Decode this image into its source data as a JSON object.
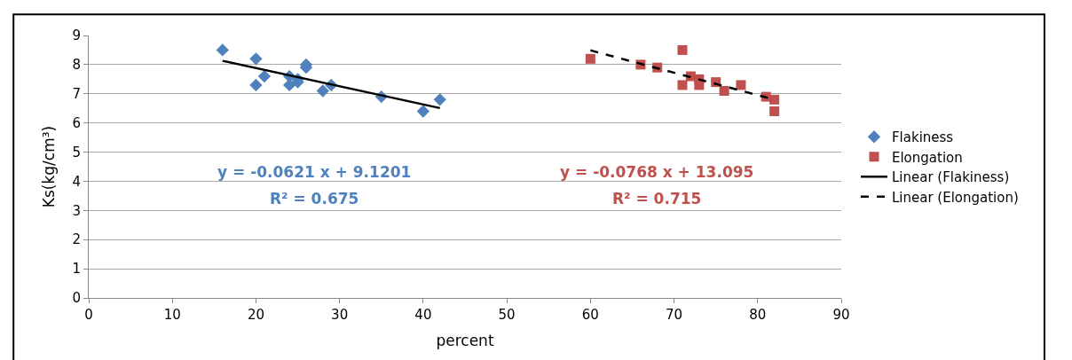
{
  "chart_data": {
    "type": "scatter",
    "xlabel": "percent",
    "ylabel": "Ks(kg/cm³)",
    "xlim": [
      0,
      90
    ],
    "xticks": [
      0,
      10,
      20,
      30,
      40,
      50,
      60,
      70,
      80,
      90
    ],
    "ylim": [
      0,
      9
    ],
    "yticks": [
      0,
      1,
      2,
      3,
      4,
      5,
      6,
      7,
      8,
      9
    ],
    "grid": "y",
    "legend": "right",
    "series": [
      {
        "name": "Flakiness",
        "color": "#4f81bd",
        "marker": "diamond",
        "x": [
          16,
          20,
          20,
          21,
          24,
          24,
          25,
          25,
          26,
          26,
          28,
          29,
          35,
          40,
          42
        ],
        "values": [
          8.5,
          8.2,
          7.3,
          7.6,
          7.6,
          7.3,
          7.4,
          7.5,
          7.9,
          8.0,
          7.1,
          7.3,
          6.9,
          6.4,
          6.8
        ]
      },
      {
        "name": "Elongation",
        "color": "#c0504d",
        "marker": "square",
        "x": [
          60,
          66,
          68,
          71,
          71,
          72,
          73,
          73,
          75,
          76,
          78,
          81,
          82,
          82
        ],
        "values": [
          8.2,
          8.0,
          7.9,
          8.5,
          7.3,
          7.6,
          7.5,
          7.3,
          7.4,
          7.1,
          7.3,
          6.9,
          6.8,
          6.4
        ]
      },
      {
        "name": "Linear (Flakiness)",
        "type": "line",
        "color": "#000000",
        "line_style": "solid",
        "marker": "none",
        "x": [
          16,
          42
        ],
        "values": [
          8.13,
          6.51
        ]
      },
      {
        "name": "Linear (Elongation)",
        "type": "line",
        "color": "#000000",
        "line_style": "dashed",
        "marker": "none",
        "x": [
          60,
          82
        ],
        "values": [
          8.49,
          6.8
        ]
      }
    ],
    "annotations": [
      "y = -0.0621 x + 9.1201",
      "R² = 0.675",
      "y = -0.0768 x + 13.095",
      "R² = 0.715"
    ]
  }
}
